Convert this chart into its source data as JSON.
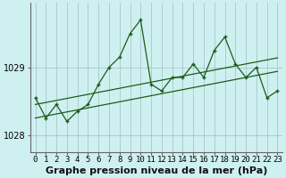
{
  "title": "Graphe pression niveau de la mer (hPa)",
  "background_color": "#cff0f0",
  "grid_color": "#b8d8d8",
  "line_color": "#1a5c1a",
  "hours": [
    0,
    1,
    2,
    3,
    4,
    5,
    6,
    7,
    8,
    9,
    10,
    11,
    12,
    13,
    14,
    15,
    16,
    17,
    18,
    19,
    20,
    21,
    22,
    23
  ],
  "pressure_main": [
    1028.55,
    1028.25,
    1028.45,
    1028.2,
    1028.35,
    1028.45,
    1028.75,
    1029.0,
    1029.15,
    1029.5,
    1029.7,
    1028.75,
    1028.65,
    1028.85,
    1028.85,
    1029.05,
    1028.85,
    1029.25,
    1029.45,
    1029.05,
    1028.85,
    1029.0,
    1028.55,
    1028.65
  ],
  "pressure_smooth1": [
    1028.45,
    1028.48,
    1028.51,
    1028.54,
    1028.57,
    1028.6,
    1028.63,
    1028.66,
    1028.69,
    1028.72,
    1028.75,
    1028.78,
    1028.81,
    1028.84,
    1028.87,
    1028.9,
    1028.93,
    1028.96,
    1028.99,
    1029.02,
    1029.05,
    1029.08,
    1029.11,
    1029.14
  ],
  "pressure_smooth2": [
    1028.25,
    1028.28,
    1028.31,
    1028.34,
    1028.37,
    1028.4,
    1028.43,
    1028.46,
    1028.49,
    1028.52,
    1028.55,
    1028.58,
    1028.61,
    1028.64,
    1028.67,
    1028.7,
    1028.73,
    1028.76,
    1028.79,
    1028.82,
    1028.85,
    1028.88,
    1028.91,
    1028.94
  ],
  "ylim": [
    1027.75,
    1029.95
  ],
  "yticks": [
    1028,
    1029
  ],
  "title_fontsize": 8,
  "tick_fontsize": 6.5
}
